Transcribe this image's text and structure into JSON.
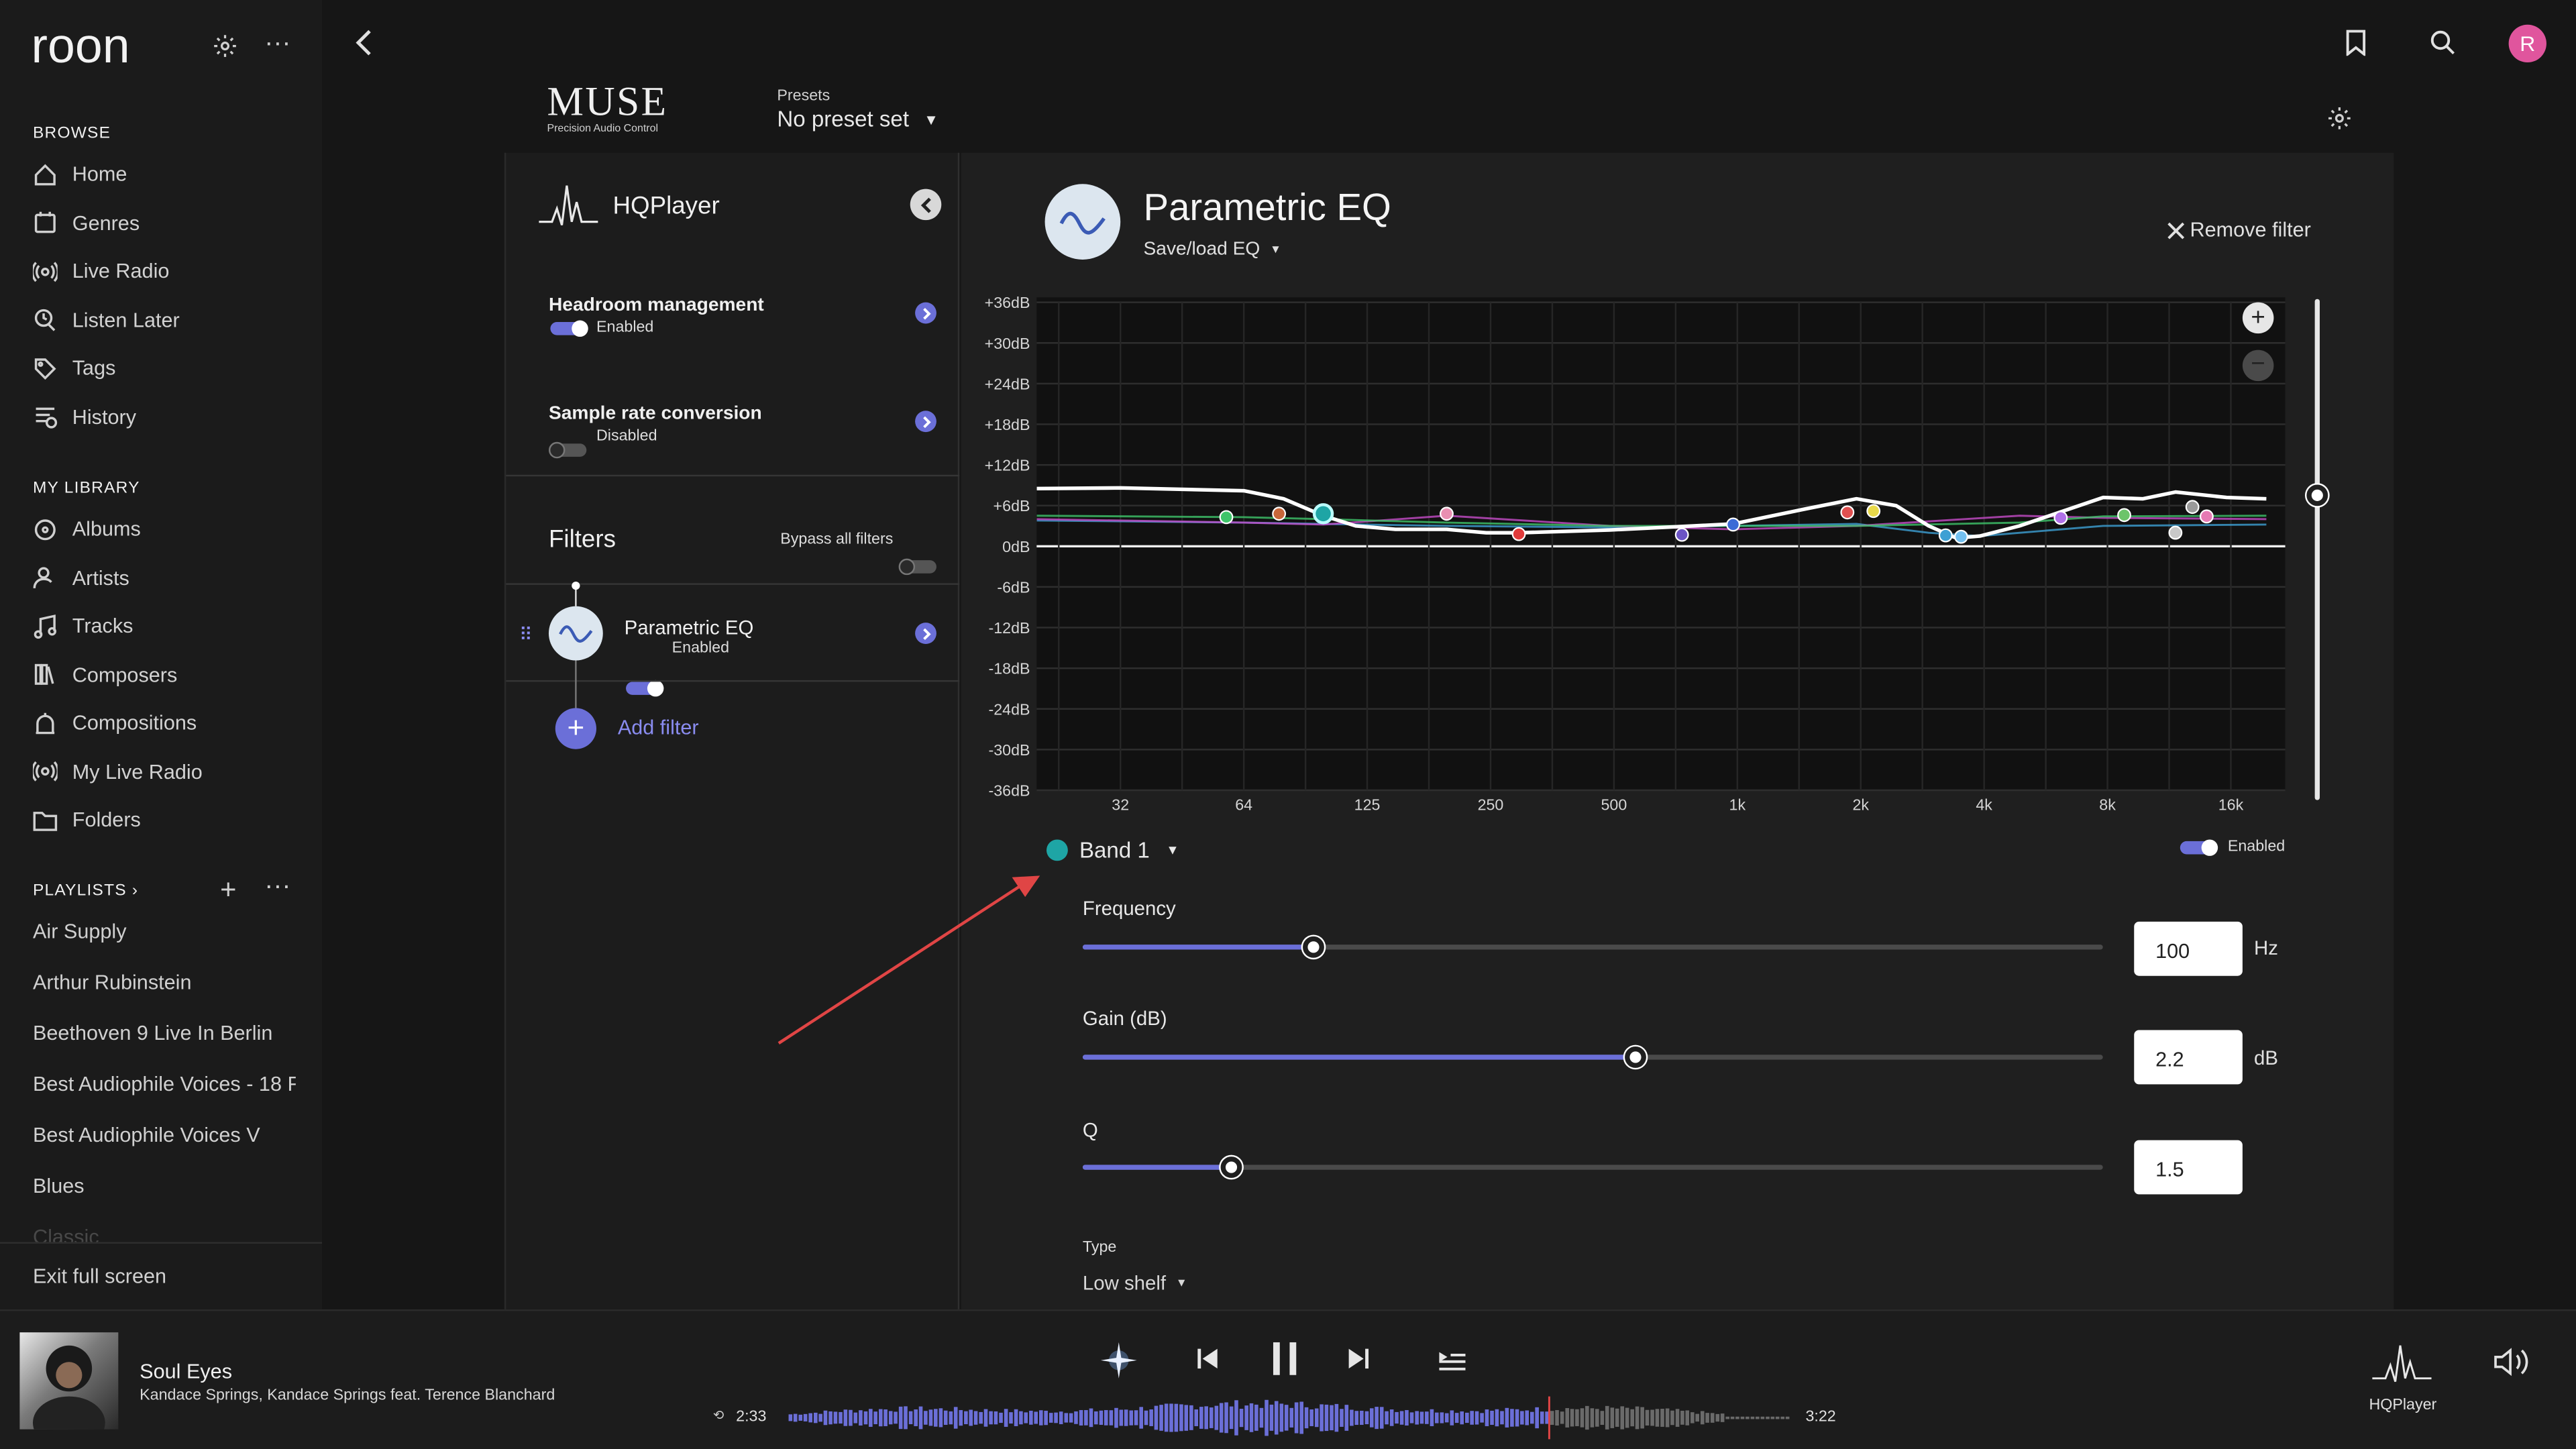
{
  "app": {
    "logo": "roon"
  },
  "sidebar": {
    "browse_title": "BROWSE",
    "browse": [
      {
        "label": "Home",
        "icon": "home-icon"
      },
      {
        "label": "Genres",
        "icon": "genres-icon"
      },
      {
        "label": "Live Radio",
        "icon": "radio-icon"
      },
      {
        "label": "Listen Later",
        "icon": "clock-icon"
      },
      {
        "label": "Tags",
        "icon": "tag-icon"
      },
      {
        "label": "History",
        "icon": "history-icon"
      }
    ],
    "library_title": "MY LIBRARY",
    "library": [
      {
        "label": "Albums",
        "icon": "album-icon"
      },
      {
        "label": "Artists",
        "icon": "artist-icon"
      },
      {
        "label": "Tracks",
        "icon": "note-icon"
      },
      {
        "label": "Composers",
        "icon": "composer-icon"
      },
      {
        "label": "Compositions",
        "icon": "composition-icon"
      },
      {
        "label": "My Live Radio",
        "icon": "radio-icon"
      },
      {
        "label": "Folders",
        "icon": "folder-icon"
      }
    ],
    "playlists_title": "PLAYLISTS",
    "playlists": [
      "Air Supply",
      "Arthur Rubinstein",
      "Beethoven 9 Live In Berlin",
      "Best Audiophile Voices - 18 F",
      "Best Audiophile Voices V",
      "Blues",
      "Classic"
    ],
    "exit": "Exit full screen"
  },
  "muse": {
    "logo_title": "MUSE",
    "logo_sub": "Precision Audio Control",
    "presets_label": "Presets",
    "presets_value": "No preset set"
  },
  "left_panel": {
    "device": "HQPlayer",
    "headroom_title": "Headroom management",
    "headroom_status": "Enabled",
    "src_title": "Sample rate conversion",
    "src_status": "Disabled",
    "filters_title": "Filters",
    "bypass_label": "Bypass all filters",
    "filter_name": "Parametric EQ",
    "filter_status": "Enabled",
    "add_filter": "Add filter"
  },
  "eq": {
    "title": "Parametric EQ",
    "save_load": "Save/load EQ",
    "remove": "Remove filter",
    "band_label": "Band 1",
    "band_enabled": "Enabled",
    "frequency_label": "Frequency",
    "frequency_value": "100",
    "frequency_unit": "Hz",
    "frequency_pos": 0.227,
    "gain_label": "Gain (dB)",
    "gain_value": "2.2",
    "gain_unit": "dB",
    "gain_pos": 0.542,
    "q_label": "Q",
    "q_value": "1.5",
    "q_pos": 0.146,
    "type_label": "Type",
    "type_value": "Low shelf",
    "accent": "#6b6fd8",
    "band_color": "#1ea5a5"
  },
  "chart_data": {
    "type": "line",
    "title": "",
    "y_ticks": [
      "+36dB",
      "+30dB",
      "+24dB",
      "+18dB",
      "+12dB",
      "+6dB",
      "0dB",
      "-6dB",
      "-12dB",
      "-18dB",
      "-24dB",
      "-30dB",
      "-36dB"
    ],
    "x_ticks": [
      "32",
      "64",
      "125",
      "250",
      "500",
      "1k",
      "2k",
      "4k",
      "8k",
      "16k"
    ],
    "ylim": [
      -36,
      36
    ],
    "xlim_hz": [
      20,
      20000
    ],
    "log_x": true,
    "series": [
      {
        "color": "#ffffff",
        "x": [
          20,
          32,
          64,
          80,
          100,
          120,
          150,
          200,
          250,
          300,
          500,
          800,
          1000,
          1500,
          2000,
          2500,
          3000,
          3500,
          4000,
          5000,
          8000,
          10000,
          12000,
          16000,
          20000
        ],
        "y": [
          8.5,
          8.6,
          8.2,
          7,
          4.5,
          3,
          2.5,
          2.5,
          2,
          2,
          2.4,
          3,
          3.3,
          5.5,
          7,
          6,
          3,
          1.2,
          1.5,
          3,
          7.2,
          7,
          8,
          7.2,
          7
        ]
      },
      {
        "color": "#3fc46a",
        "x": [
          20,
          64,
          100,
          200,
          500,
          1000,
          2000,
          5000,
          8000,
          20000
        ],
        "y": [
          4.5,
          4.3,
          4,
          3.5,
          3,
          3,
          3,
          3.5,
          4.4,
          4.5
        ]
      },
      {
        "color": "#c64cc8",
        "x": [
          20,
          64,
          100,
          200,
          500,
          1000,
          2000,
          5000,
          8000,
          20000
        ],
        "y": [
          4,
          3.5,
          3.2,
          4.5,
          3,
          2.5,
          3,
          4.5,
          4.2,
          4
        ]
      },
      {
        "color": "#3da0d4",
        "x": [
          20,
          64,
          100,
          200,
          500,
          1000,
          2000,
          3000,
          4000,
          8000,
          20000
        ],
        "y": [
          3.8,
          3.5,
          3.3,
          3,
          2.8,
          3,
          3.3,
          2,
          1.5,
          3,
          3.2
        ]
      }
    ],
    "points": [
      {
        "x": 58,
        "y": 4.3,
        "color": "#3fc46a"
      },
      {
        "x": 78,
        "y": 4.8,
        "color": "#c8673a"
      },
      {
        "x": 100,
        "y": 4.8,
        "color": "#1ea5a5"
      },
      {
        "x": 200,
        "y": 4.8,
        "color": "#e98fb1"
      },
      {
        "x": 300,
        "y": 1.8,
        "color": "#e03a3a"
      },
      {
        "x": 750,
        "y": 1.7,
        "color": "#6b54c4"
      },
      {
        "x": 1000,
        "y": 3.2,
        "color": "#3c6bd6"
      },
      {
        "x": 1900,
        "y": 5,
        "color": "#e05050"
      },
      {
        "x": 2200,
        "y": 5.2,
        "color": "#e8d94a"
      },
      {
        "x": 3300,
        "y": 1.6,
        "color": "#3da0d4"
      },
      {
        "x": 3600,
        "y": 1.4,
        "color": "#73c0f0"
      },
      {
        "x": 6300,
        "y": 4.2,
        "color": "#b070e8"
      },
      {
        "x": 9000,
        "y": 4.6,
        "color": "#6cc46a"
      },
      {
        "x": 12000,
        "y": 2,
        "color": "#c8c8c8"
      },
      {
        "x": 13200,
        "y": 5.8,
        "color": "#9a9a9a"
      },
      {
        "x": 14300,
        "y": 4.4,
        "color": "#e67ab4"
      }
    ]
  },
  "player": {
    "title": "Soul Eyes",
    "artist": "Kandace Springs, Kandace Springs feat. Terence Blanchard",
    "elapsed": "2:33",
    "total": "3:22",
    "progress": 0.758,
    "zone": "HQPlayer"
  }
}
